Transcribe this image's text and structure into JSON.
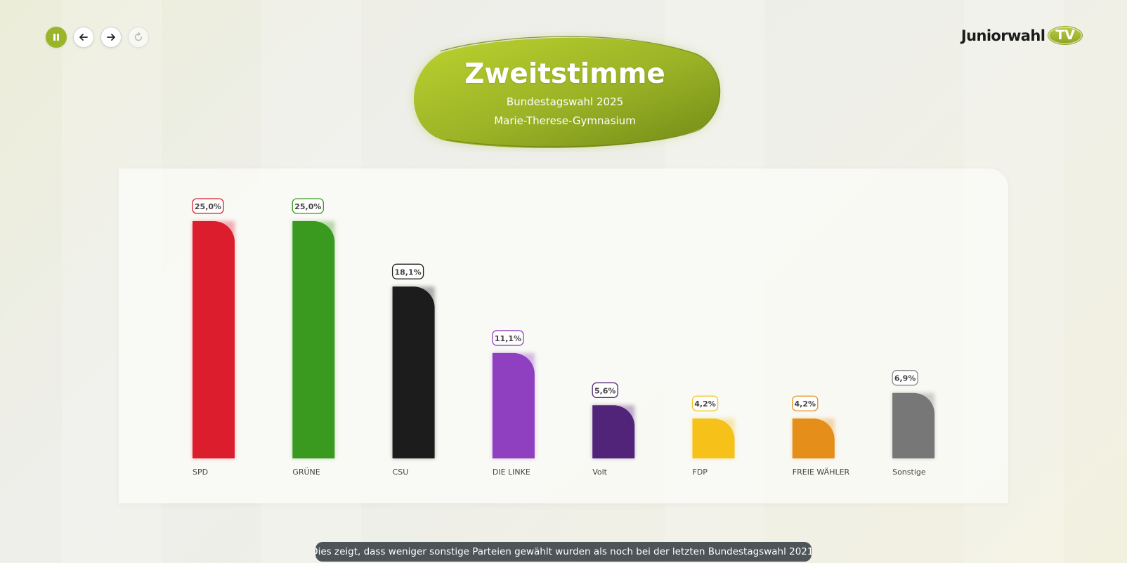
{
  "controls": {
    "pause_icon": "pause-icon",
    "back_icon": "arrow-left-icon",
    "forward_icon": "arrow-right-icon",
    "reload_icon": "reload-icon",
    "accent": "#9bb52a"
  },
  "logo": {
    "word": "Juniorwahl",
    "badge": "TV"
  },
  "header": {
    "title": "Zweitstimme",
    "subtitle": "Bundestagswahl 2025",
    "school": "Marie-Therese-Gymnasium"
  },
  "chart_data": {
    "type": "bar",
    "categories": [
      "SPD",
      "GRÜNE",
      "CSU",
      "DIE LINKE",
      "Volt",
      "FDP",
      "FREIE WÄHLER",
      "Sonstige"
    ],
    "values": [
      25.0,
      25.0,
      18.1,
      11.1,
      5.6,
      4.2,
      4.2,
      6.9
    ],
    "value_labels": [
      "25,0%",
      "25,0%",
      "18,1%",
      "11,1%",
      "5,6%",
      "4,2%",
      "4,2%",
      "6,9%"
    ],
    "colors": [
      "#dc1d2d",
      "#3a9a20",
      "#1c1c1c",
      "#8e40c0",
      "#51247a",
      "#f6c21a",
      "#e58f1a",
      "#777777"
    ],
    "ylim": [
      0,
      25
    ],
    "grid": false,
    "title": "",
    "xlabel": "",
    "ylabel": ""
  },
  "caption": "Dies zeigt, dass weniger sonstige Parteien gewählt wurden als noch bei der letzten Bundestagswahl 2021."
}
